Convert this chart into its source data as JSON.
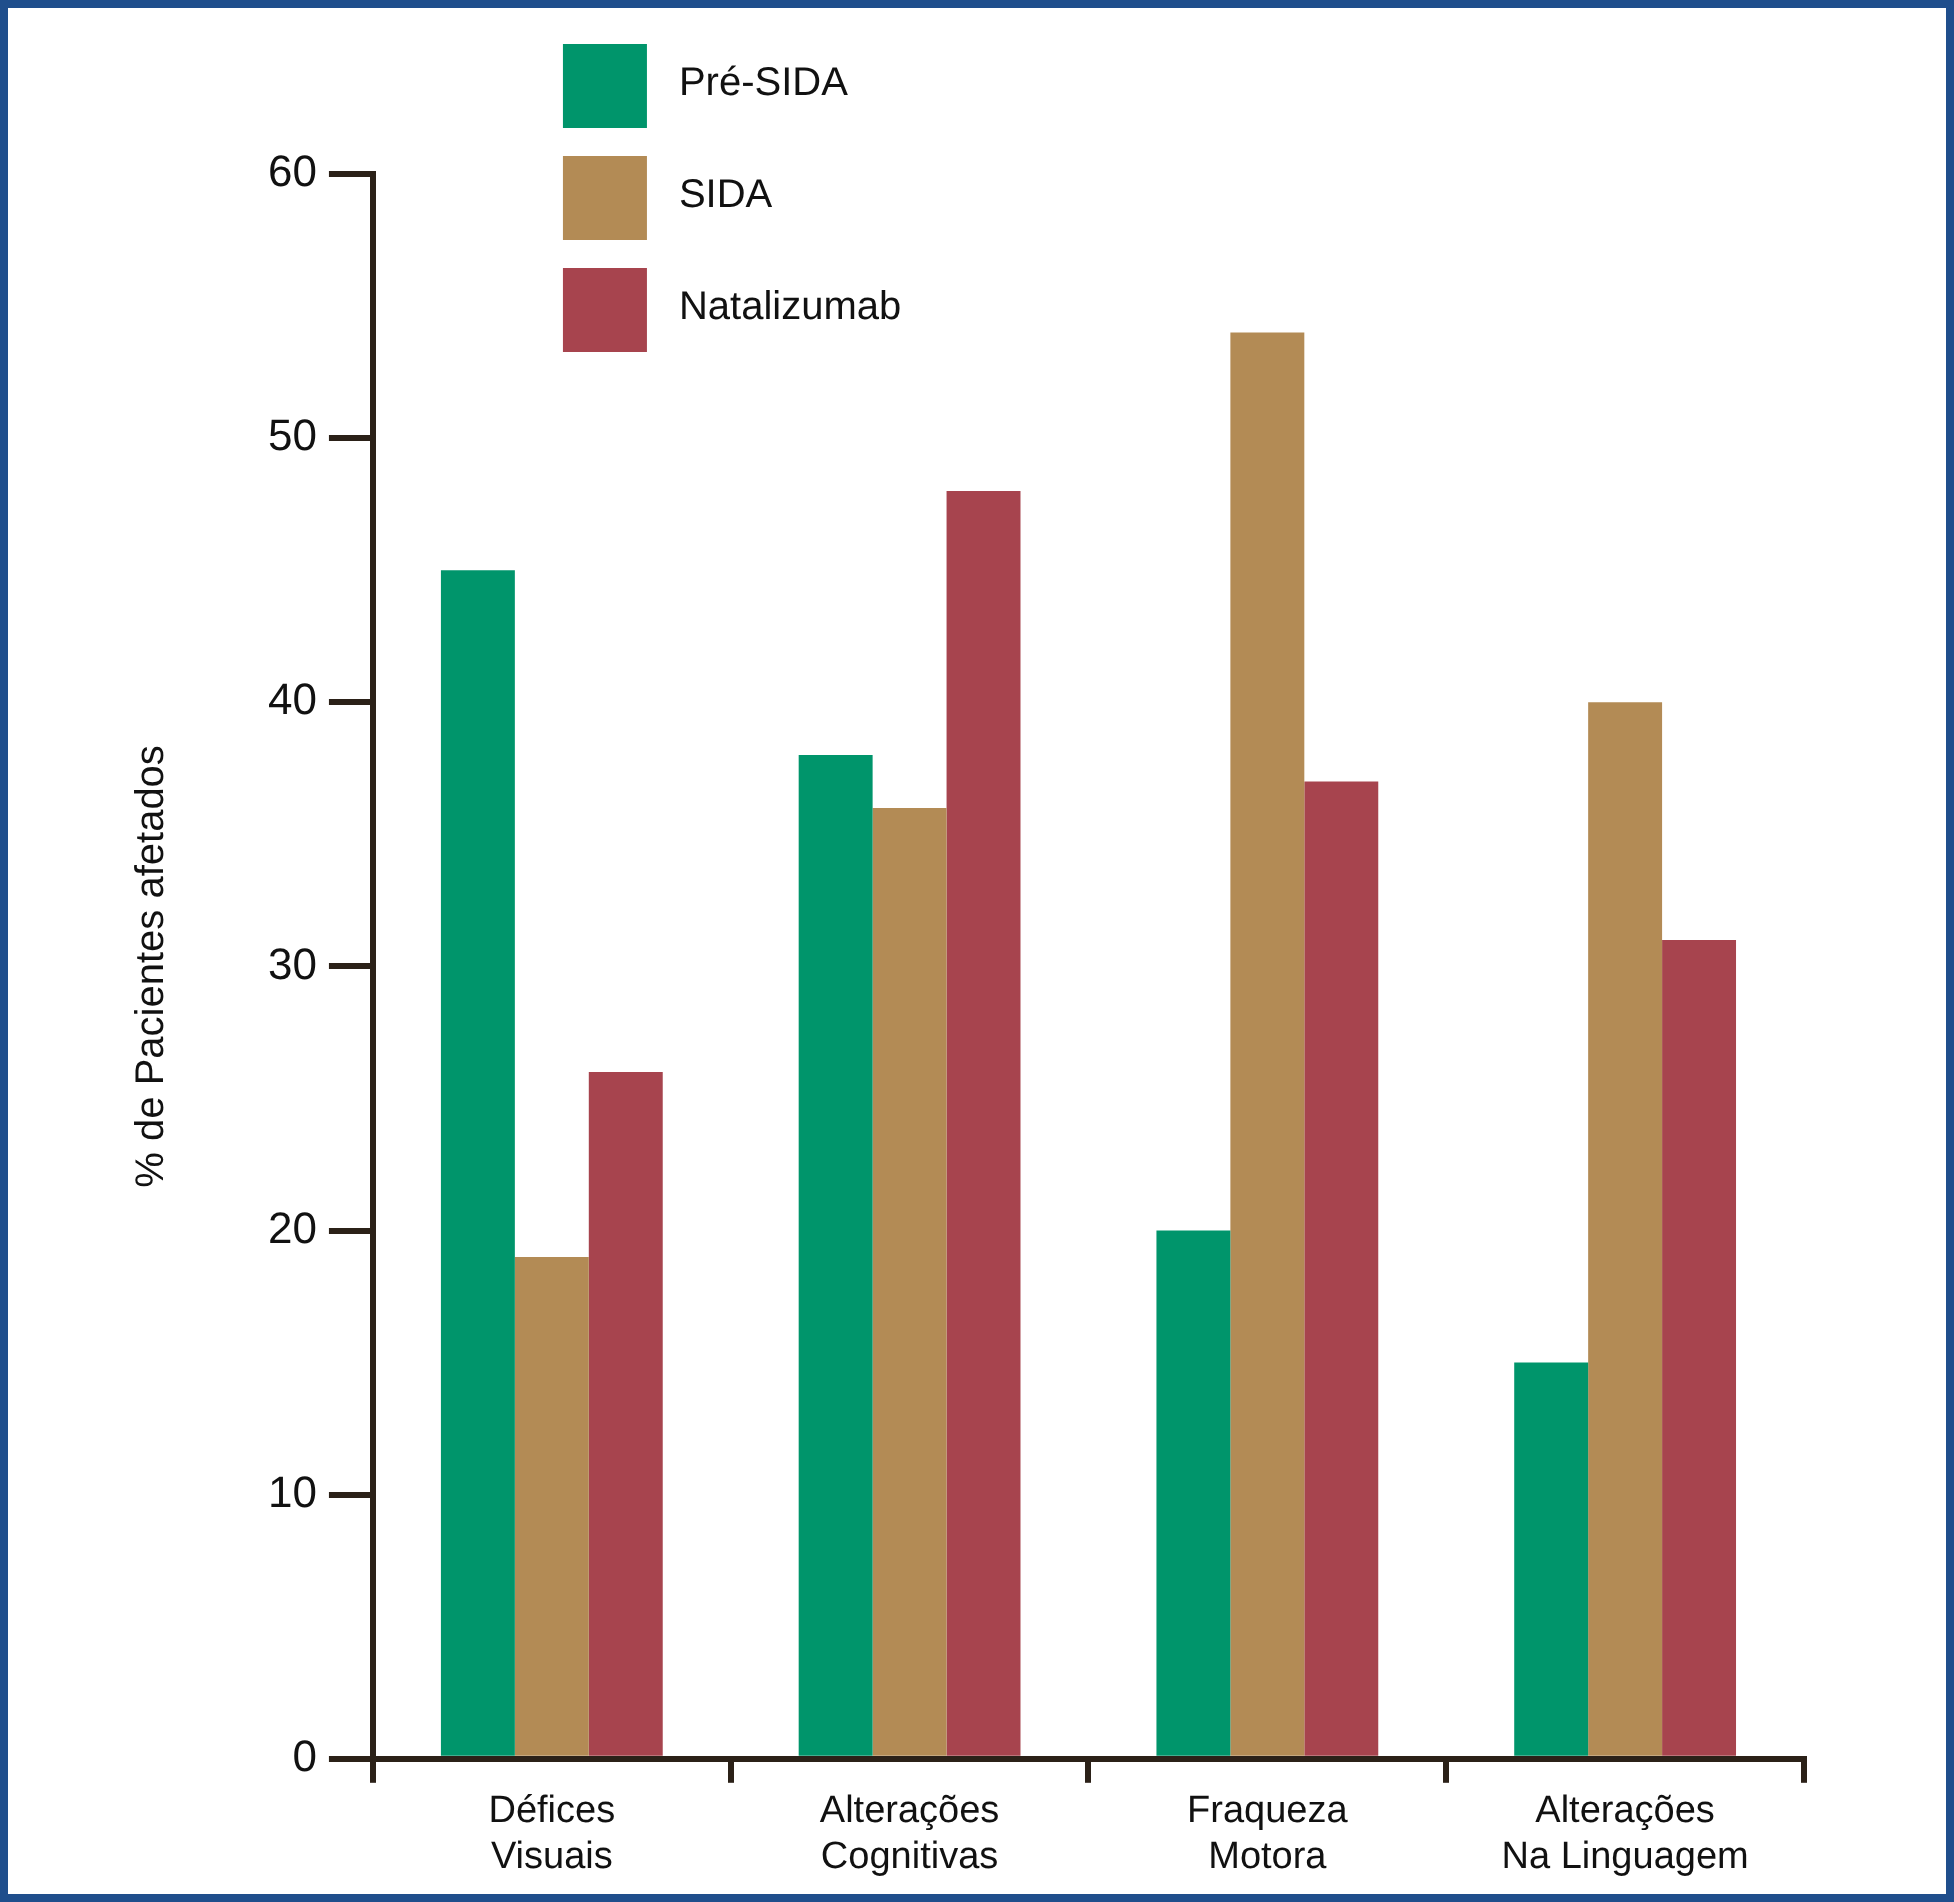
{
  "chart_data": {
    "type": "bar",
    "ylabel": "% de Pacientes afetados",
    "categories": [
      "Défices Visuais",
      "Alterações Cognitivas",
      "Fraqueza Motora",
      "Alterações Na Linguagem"
    ],
    "series": [
      {
        "name": "Pré-SIDA",
        "color": "#00956b",
        "values": [
          45,
          38,
          20,
          15
        ]
      },
      {
        "name": "SIDA",
        "color": "#b38b55",
        "values": [
          19,
          36,
          54,
          40
        ]
      },
      {
        "name": "Natalizumab",
        "color": "#a7444e",
        "values": [
          26,
          48,
          37,
          31
        ]
      }
    ],
    "ylim": [
      0,
      60
    ],
    "yticks": [
      0,
      10,
      20,
      30,
      40,
      50,
      60
    ],
    "grid": false,
    "legend": "top left"
  }
}
